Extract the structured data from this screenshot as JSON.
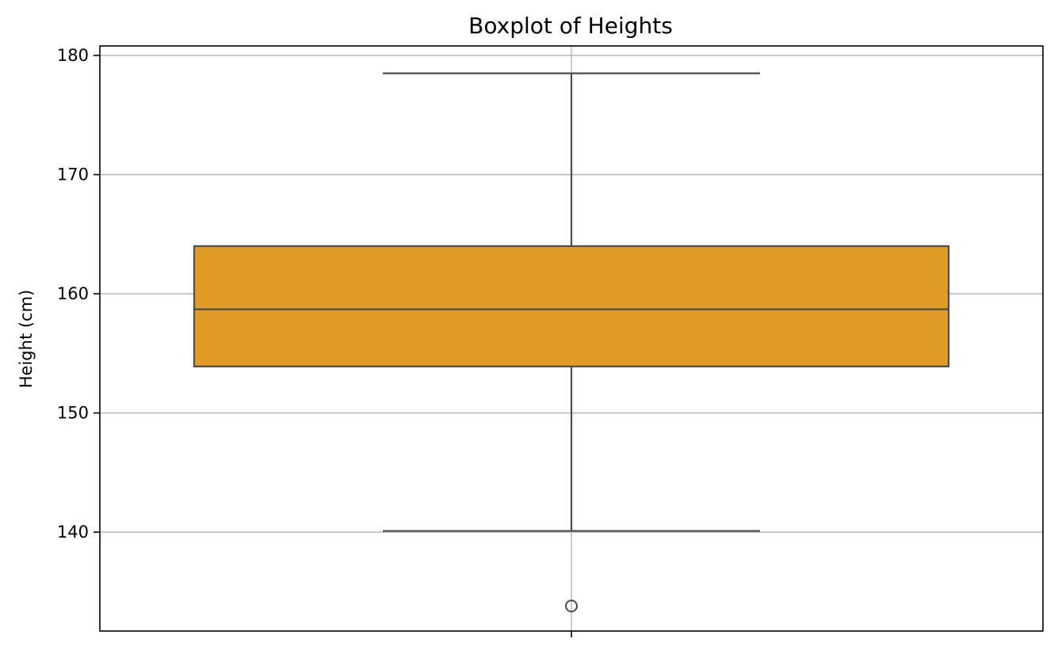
{
  "chart_data": {
    "type": "boxplot",
    "title": "Boxplot of Heights",
    "xlabel": "",
    "ylabel": "Height (cm)",
    "ylim": [
      131.7,
      180.8
    ],
    "yticks": [
      140,
      150,
      160,
      170,
      180
    ],
    "grid": true,
    "series": [
      {
        "whisker_low": 140.1,
        "q1": 153.9,
        "median": 158.7,
        "q3": 164.0,
        "whisker_high": 178.5,
        "outliers": [
          133.8
        ]
      }
    ]
  },
  "colors": {
    "box_fill": "#e09c24",
    "line": "#4d4d4d",
    "grid": "#b0b0b0",
    "axes": "#000000"
  }
}
